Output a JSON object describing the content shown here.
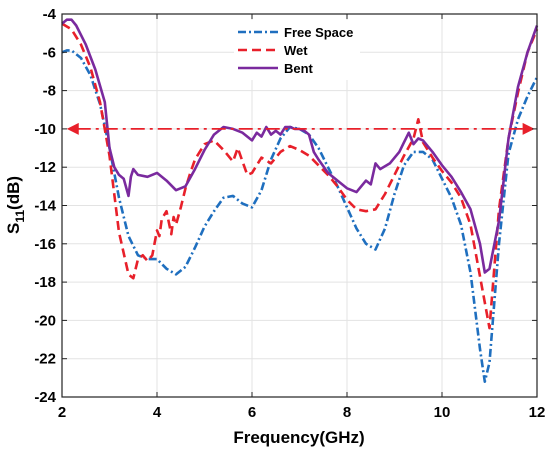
{
  "chart_data": {
    "type": "line",
    "xlabel": "Frequency(GHz)",
    "ylabel_main": "S",
    "ylabel_sub": "11",
    "ylabel_unit": "(dB)",
    "xlim": [
      2,
      12
    ],
    "ylim": [
      -24,
      -4
    ],
    "xticks": [
      2,
      4,
      6,
      8,
      10,
      12
    ],
    "yticks": [
      -24,
      -22,
      -20,
      -18,
      -16,
      -14,
      -12,
      -10,
      -8,
      -6,
      -4
    ],
    "grid": true,
    "legend_position": "top-center",
    "reference_line": {
      "y": -10,
      "x_start": 2.1,
      "x_end": 11.95,
      "color": "#e8202a"
    },
    "series": [
      {
        "name": "Free Space",
        "color": "#1f6fbf",
        "dash": "8,3,2,3",
        "x": [
          2.0,
          2.1,
          2.2,
          2.4,
          2.6,
          2.8,
          3.0,
          3.2,
          3.4,
          3.6,
          3.8,
          4.0,
          4.2,
          4.4,
          4.6,
          4.8,
          5.0,
          5.2,
          5.4,
          5.6,
          5.8,
          6.0,
          6.2,
          6.4,
          6.6,
          6.8,
          7.0,
          7.2,
          7.4,
          7.6,
          7.8,
          8.0,
          8.2,
          8.4,
          8.6,
          8.8,
          9.0,
          9.2,
          9.4,
          9.6,
          9.8,
          10.0,
          10.2,
          10.4,
          10.6,
          10.8,
          10.9,
          11.0,
          11.2,
          11.4,
          11.6,
          11.8,
          12.0
        ],
        "values": [
          -6.0,
          -5.9,
          -5.9,
          -6.3,
          -7.2,
          -8.7,
          -11.0,
          -13.6,
          -15.6,
          -16.6,
          -16.8,
          -16.8,
          -17.3,
          -17.6,
          -17.2,
          -16.2,
          -15.1,
          -14.3,
          -13.6,
          -13.5,
          -13.9,
          -14.1,
          -13.2,
          -11.6,
          -10.5,
          -9.9,
          -10.0,
          -10.3,
          -11.0,
          -12.0,
          -13.0,
          -14.1,
          -15.2,
          -16.0,
          -16.3,
          -15.2,
          -13.4,
          -11.9,
          -11.2,
          -11.2,
          -11.6,
          -12.6,
          -13.6,
          -15.0,
          -17.5,
          -21.5,
          -23.2,
          -22.2,
          -16.0,
          -11.3,
          -9.5,
          -8.3,
          -7.3
        ]
      },
      {
        "name": "Wet",
        "color": "#e8202a",
        "dash": "9,5",
        "x": [
          2.0,
          2.2,
          2.4,
          2.6,
          2.8,
          3.0,
          3.2,
          3.4,
          3.5,
          3.6,
          3.7,
          3.8,
          3.9,
          4.0,
          4.05,
          4.1,
          4.2,
          4.3,
          4.35,
          4.4,
          4.5,
          4.6,
          4.7,
          4.8,
          5.0,
          5.2,
          5.4,
          5.6,
          5.7,
          5.8,
          5.9,
          6.0,
          6.2,
          6.4,
          6.6,
          6.8,
          7.0,
          7.2,
          7.4,
          7.6,
          7.8,
          8.0,
          8.2,
          8.4,
          8.6,
          8.8,
          9.0,
          9.2,
          9.4,
          9.5,
          9.6,
          9.8,
          10.0,
          10.2,
          10.4,
          10.6,
          10.8,
          11.0,
          11.2,
          11.4,
          11.6,
          11.8,
          12.0
        ],
        "values": [
          -4.5,
          -4.8,
          -5.6,
          -6.8,
          -8.6,
          -11.4,
          -15.4,
          -17.6,
          -17.8,
          -16.8,
          -16.6,
          -16.9,
          -16.6,
          -15.3,
          -15.6,
          -14.7,
          -14.3,
          -15.5,
          -14.6,
          -15.0,
          -14.1,
          -13.1,
          -12.3,
          -11.6,
          -10.8,
          -10.6,
          -11.1,
          -11.7,
          -11.0,
          -11.7,
          -12.4,
          -12.3,
          -11.5,
          -11.8,
          -11.2,
          -10.9,
          -11.1,
          -11.4,
          -11.9,
          -12.4,
          -13.0,
          -13.7,
          -14.2,
          -14.3,
          -14.2,
          -13.4,
          -12.4,
          -11.4,
          -10.5,
          -9.5,
          -10.7,
          -11.5,
          -12.2,
          -12.8,
          -13.6,
          -15.0,
          -17.7,
          -20.4,
          -14.2,
          -10.5,
          -8.1,
          -6.0,
          -4.8
        ]
      },
      {
        "name": "Bent",
        "color": "#7a2a9e",
        "dash": "",
        "x": [
          2.0,
          2.1,
          2.2,
          2.3,
          2.5,
          2.7,
          2.9,
          3.0,
          3.1,
          3.2,
          3.3,
          3.4,
          3.45,
          3.5,
          3.6,
          3.8,
          4.0,
          4.2,
          4.4,
          4.6,
          4.8,
          5.0,
          5.2,
          5.4,
          5.6,
          5.8,
          6.0,
          6.1,
          6.2,
          6.3,
          6.4,
          6.5,
          6.6,
          6.7,
          6.8,
          6.9,
          7.0,
          7.1,
          7.2,
          7.3,
          7.4,
          7.6,
          7.8,
          8.0,
          8.2,
          8.4,
          8.5,
          8.6,
          8.7,
          8.9,
          9.1,
          9.2,
          9.3,
          9.4,
          9.5,
          9.6,
          9.8,
          10.0,
          10.2,
          10.4,
          10.6,
          10.8,
          10.9,
          11.0,
          11.2,
          11.4,
          11.6,
          11.8,
          12.0
        ],
        "values": [
          -4.5,
          -4.3,
          -4.3,
          -4.6,
          -5.6,
          -6.9,
          -8.6,
          -11.0,
          -12.0,
          -12.4,
          -12.6,
          -13.5,
          -12.5,
          -12.1,
          -12.4,
          -12.5,
          -12.3,
          -12.7,
          -13.2,
          -13.0,
          -12.1,
          -11.1,
          -10.3,
          -9.9,
          -10.0,
          -10.2,
          -10.6,
          -10.2,
          -10.4,
          -9.9,
          -10.3,
          -10.1,
          -10.3,
          -9.9,
          -9.9,
          -10.0,
          -10.0,
          -10.1,
          -10.3,
          -11.2,
          -11.6,
          -12.3,
          -12.7,
          -13.1,
          -13.3,
          -12.7,
          -12.9,
          -11.8,
          -12.1,
          -11.8,
          -11.2,
          -10.7,
          -10.2,
          -10.8,
          -10.5,
          -10.6,
          -11.2,
          -11.9,
          -12.5,
          -13.3,
          -14.2,
          -16.0,
          -17.5,
          -17.3,
          -14.8,
          -10.5,
          -7.8,
          -6.0,
          -4.6
        ]
      }
    ]
  }
}
